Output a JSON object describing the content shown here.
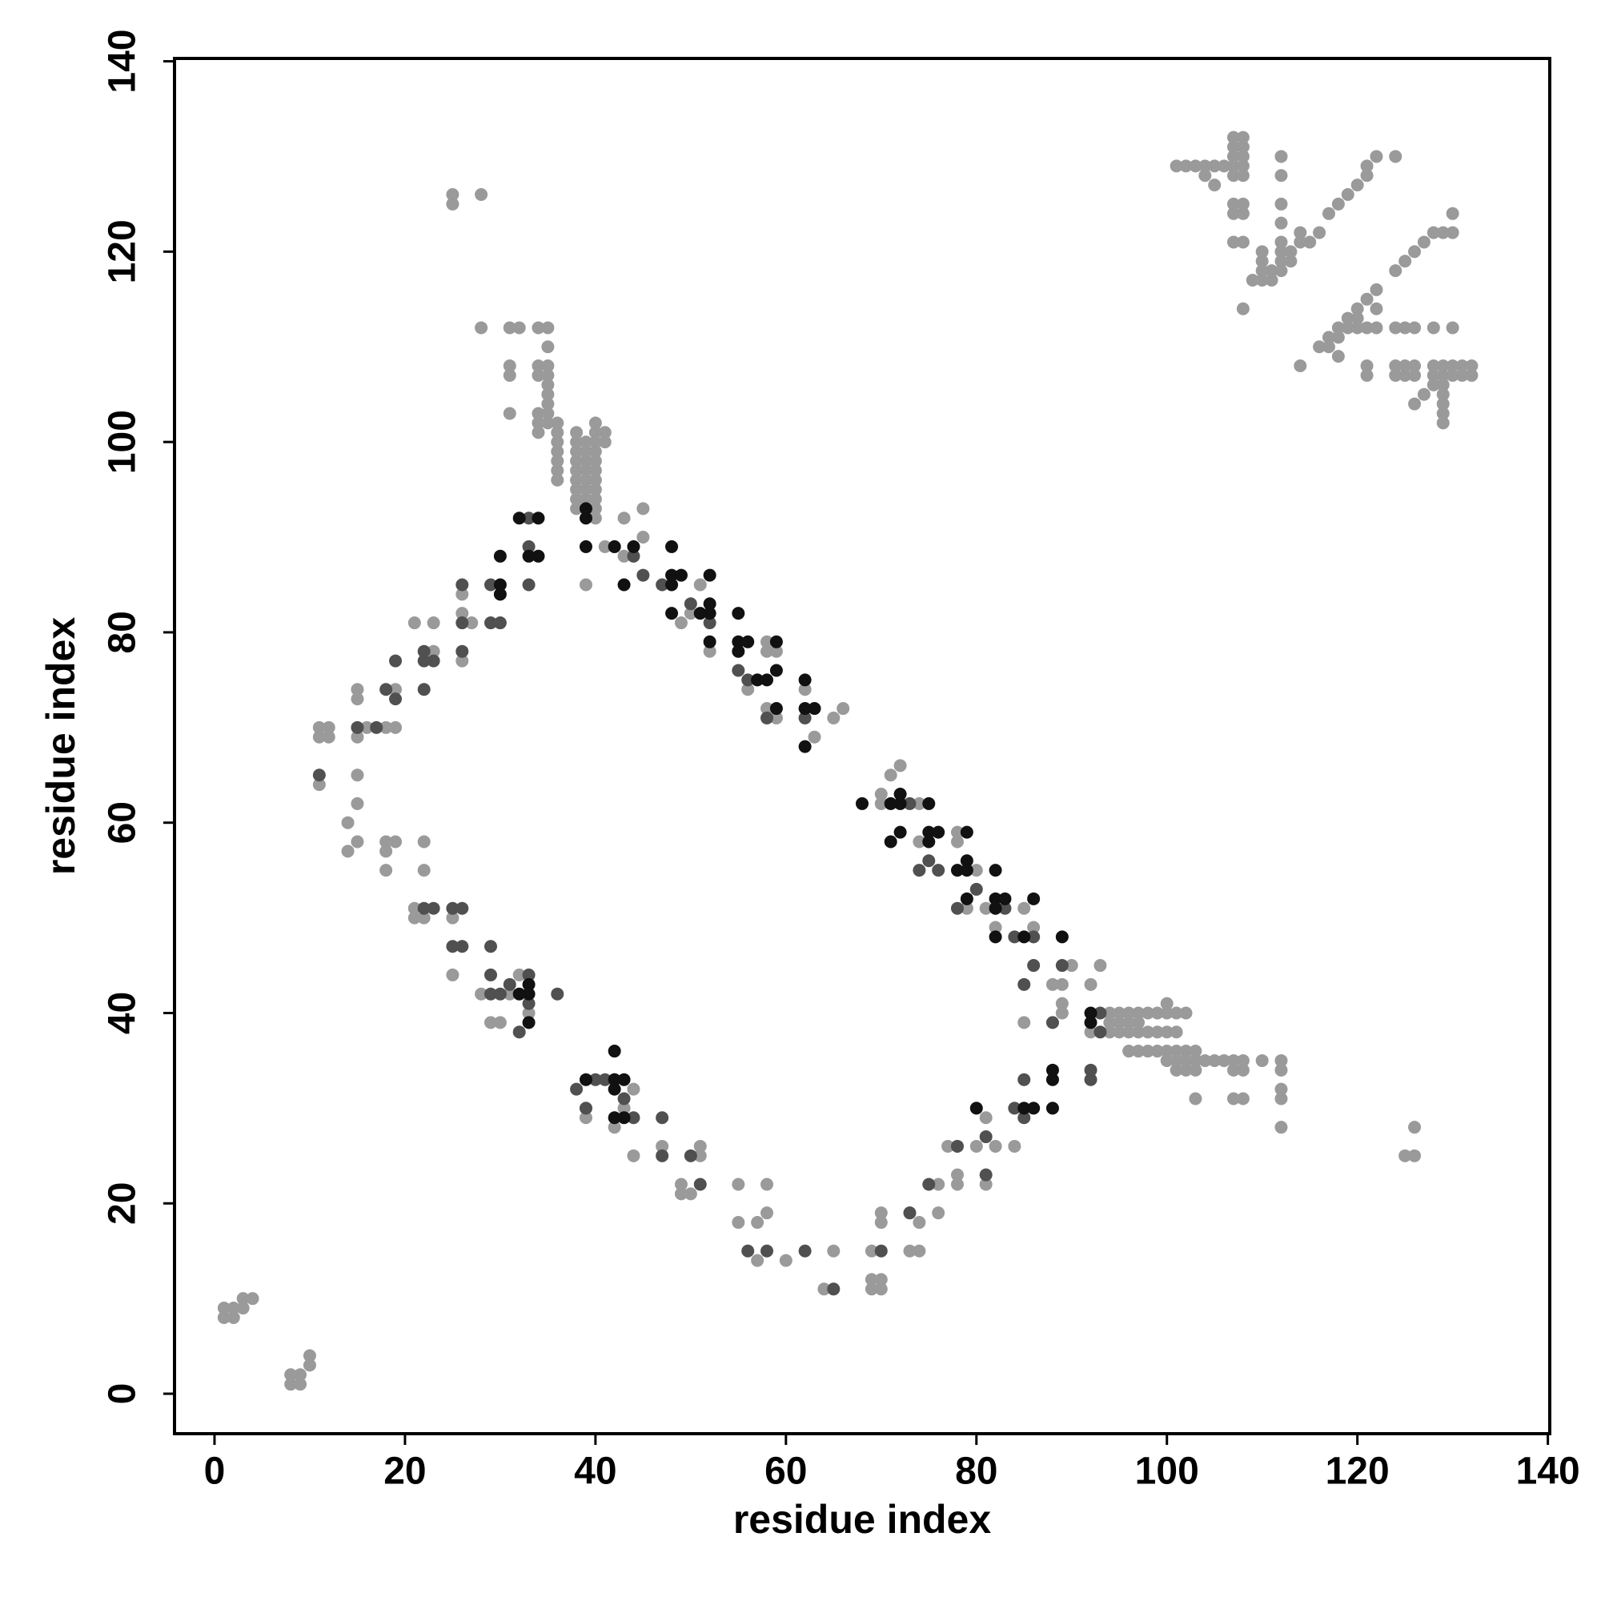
{
  "chart_data": {
    "type": "scatter",
    "x_label": "residue index",
    "y_label": "residue index",
    "xlim": [
      -4.2,
      140.2
    ],
    "ylim": [
      -4.2,
      140.3
    ],
    "xticks": [
      0,
      20,
      40,
      60,
      80,
      100,
      120,
      140
    ],
    "yticks": [
      0,
      20,
      40,
      60,
      80,
      100,
      120,
      140
    ],
    "grid": false,
    "series": [
      {
        "color": "#9a9a9a",
        "x": [
          1,
          1,
          2,
          2,
          3,
          4,
          3,
          8,
          8,
          9,
          9,
          10,
          10,
          25,
          25,
          28,
          28,
          31,
          32,
          34,
          35,
          31,
          31,
          31,
          34,
          34,
          35,
          35,
          35,
          35,
          35,
          35,
          35,
          34,
          34,
          34,
          36,
          36,
          36,
          36,
          36,
          36,
          36,
          35,
          38,
          38,
          38,
          38,
          38,
          38,
          38,
          38,
          38,
          39,
          39,
          39,
          39,
          39,
          39,
          39,
          40,
          40,
          40,
          40,
          40,
          40,
          40,
          40,
          40,
          41,
          41,
          40,
          40,
          43,
          45,
          45,
          41,
          42,
          43,
          39,
          101,
          102,
          103,
          104,
          105,
          106,
          105,
          104,
          107,
          107,
          107,
          107,
          107,
          108,
          108,
          108,
          108,
          108,
          107,
          107,
          108,
          108,
          107,
          108,
          108,
          112,
          112,
          112,
          112,
          112,
          112,
          112,
          112,
          110,
          110,
          110,
          110,
          109,
          111,
          111,
          113,
          113,
          114,
          114,
          115,
          116,
          117,
          118,
          119,
          120,
          121,
          121,
          122,
          124,
          114,
          116,
          117,
          117,
          118,
          118,
          118,
          119,
          119,
          120,
          120,
          120,
          121,
          121,
          122,
          122,
          122,
          124,
          125,
          126,
          124,
          124,
          125,
          125,
          126,
          126,
          121,
          121,
          124,
          125,
          126,
          127,
          128,
          129,
          130,
          130,
          128,
          130,
          126,
          127,
          128,
          129,
          129,
          129,
          129,
          129,
          129,
          129,
          130,
          130,
          131,
          131,
          132,
          132,
          128,
          128,
          11,
          12,
          11,
          12,
          15,
          15,
          15,
          16,
          18,
          19,
          19,
          15,
          15,
          14,
          14,
          15,
          18,
          19,
          18,
          18,
          11,
          21,
          21,
          22,
          22,
          22,
          21,
          23,
          23,
          26,
          26,
          26,
          27,
          25,
          25,
          28,
          29,
          30,
          32,
          33,
          31,
          39,
          39,
          42,
          43,
          44,
          44,
          47,
          49,
          49,
          50,
          51,
          51,
          55,
          55,
          57,
          57,
          58,
          58,
          60,
          64,
          65,
          69,
          69,
          69,
          70,
          70,
          70,
          70,
          73,
          74,
          74,
          73,
          76,
          76,
          77,
          78,
          78,
          80,
          81,
          81,
          82,
          84,
          85,
          88,
          89,
          90,
          89,
          89,
          93,
          92,
          92,
          94,
          95,
          96,
          97,
          98,
          99,
          100,
          101,
          102,
          100,
          94,
          95,
          96,
          97,
          94,
          95,
          96,
          97,
          98,
          99,
          100,
          101,
          96,
          97,
          98,
          99,
          100,
          101,
          102,
          103,
          100,
          101,
          102,
          103,
          104,
          105,
          106,
          107,
          108,
          101,
          102,
          103,
          107,
          108,
          103,
          107,
          108,
          110,
          112,
          112,
          112,
          112,
          112,
          125,
          126,
          126,
          49,
          50,
          51,
          52,
          56,
          57,
          58,
          58,
          58,
          59,
          59,
          62,
          63,
          65,
          66,
          71,
          72,
          70,
          70,
          74,
          74,
          78,
          78,
          79,
          80,
          81,
          82,
          85,
          86
        ],
        "y": [
          9,
          8,
          8,
          9,
          10,
          10,
          9,
          2,
          1,
          1,
          2,
          3,
          4,
          126,
          125,
          126,
          112,
          112,
          112,
          112,
          112,
          108,
          107,
          103,
          108,
          107,
          108,
          107,
          106,
          105,
          104,
          103,
          102,
          102,
          103,
          101,
          102,
          101,
          100,
          99,
          98,
          97,
          96,
          110,
          101,
          100,
          99,
          98,
          97,
          96,
          95,
          94,
          93,
          100,
          99,
          98,
          97,
          96,
          95,
          94,
          102,
          101,
          100,
          99,
          98,
          97,
          96,
          95,
          94,
          101,
          100,
          92,
          93,
          92,
          93,
          90,
          89,
          89,
          88,
          85,
          129,
          129,
          129,
          129,
          129,
          129,
          127,
          128,
          132,
          131,
          130,
          129,
          128,
          132,
          131,
          130,
          129,
          128,
          125,
          124,
          125,
          124,
          121,
          121,
          114,
          130,
          128,
          125,
          123,
          121,
          120,
          119,
          118,
          120,
          119,
          118,
          117,
          117,
          117,
          118,
          119,
          120,
          121,
          122,
          121,
          122,
          124,
          125,
          126,
          127,
          128,
          129,
          130,
          130,
          108,
          110,
          110,
          111,
          109,
          111,
          112,
          112,
          113,
          112,
          113,
          114,
          112,
          115,
          116,
          114,
          112,
          112,
          112,
          112,
          108,
          107,
          108,
          107,
          108,
          107,
          108,
          107,
          118,
          119,
          120,
          121,
          122,
          122,
          122,
          124,
          112,
          112,
          104,
          105,
          106,
          107,
          108,
          106,
          105,
          104,
          103,
          102,
          108,
          107,
          108,
          107,
          108,
          107,
          108,
          107,
          70,
          70,
          69,
          69,
          74,
          73,
          69,
          70,
          70,
          70,
          74,
          65,
          62,
          60,
          57,
          58,
          58,
          58,
          57,
          55,
          64,
          51,
          50,
          50,
          58,
          55,
          81,
          81,
          78,
          84,
          82,
          77,
          81,
          44,
          50,
          42,
          39,
          39,
          44,
          40,
          42,
          30,
          29,
          28,
          30,
          32,
          25,
          26,
          22,
          21,
          21,
          26,
          25,
          22,
          18,
          18,
          14,
          22,
          19,
          14,
          11,
          15,
          15,
          12,
          11,
          19,
          18,
          12,
          11,
          15,
          18,
          15,
          19,
          19,
          22,
          26,
          23,
          22,
          26,
          22,
          29,
          26,
          26,
          39,
          43,
          43,
          45,
          41,
          40,
          45,
          43,
          38,
          40,
          40,
          40,
          40,
          40,
          40,
          40,
          40,
          40,
          41,
          39,
          39,
          39,
          39,
          38,
          38,
          38,
          38,
          38,
          38,
          38,
          38,
          36,
          36,
          36,
          36,
          36,
          36,
          36,
          36,
          35,
          35,
          35,
          35,
          35,
          35,
          35,
          35,
          35,
          34,
          34,
          34,
          34,
          34,
          31,
          31,
          31,
          35,
          35,
          34,
          32,
          31,
          28,
          25,
          25,
          28,
          81,
          82,
          85,
          78,
          74,
          75,
          79,
          78,
          72,
          78,
          71,
          74,
          69,
          71,
          72,
          65,
          66,
          62,
          63,
          62,
          58,
          59,
          58,
          51,
          55,
          51,
          49,
          51,
          49
        ]
      },
      {
        "color": "#505050",
        "x": [
          11,
          15,
          17,
          18,
          19,
          19,
          22,
          22,
          22,
          23,
          26,
          26,
          26,
          29,
          29,
          30,
          22,
          23,
          25,
          25,
          26,
          26,
          29,
          29,
          29,
          30,
          31,
          32,
          33,
          33,
          36,
          33,
          33,
          33,
          38,
          39,
          40,
          41,
          42,
          43,
          44,
          47,
          47,
          50,
          51,
          56,
          58,
          62,
          65,
          70,
          73,
          75,
          78,
          81,
          81,
          84,
          85,
          85,
          86,
          85,
          88,
          89,
          92,
          92,
          93,
          93,
          44,
          45,
          47,
          50,
          52,
          55,
          56,
          58,
          62,
          73,
          75,
          74,
          76,
          78,
          80,
          83,
          86,
          84
        ],
        "y": [
          65,
          70,
          70,
          74,
          73,
          77,
          78,
          77,
          74,
          77,
          85,
          81,
          78,
          85,
          81,
          81,
          51,
          51,
          51,
          47,
          47,
          51,
          47,
          44,
          42,
          42,
          43,
          38,
          44,
          41,
          42,
          89,
          85,
          92,
          32,
          30,
          33,
          33,
          33,
          31,
          29,
          29,
          25,
          25,
          22,
          15,
          15,
          15,
          11,
          15,
          19,
          22,
          26,
          27,
          23,
          30,
          33,
          29,
          45,
          43,
          39,
          45,
          34,
          33,
          40,
          38,
          88,
          86,
          85,
          83,
          81,
          76,
          75,
          71,
          71,
          62,
          56,
          55,
          55,
          51,
          53,
          51,
          48,
          48
        ]
      },
      {
        "color": "#111111",
        "x": [
          30,
          30,
          30,
          32,
          33,
          34,
          34,
          39,
          39,
          39,
          42,
          43,
          44,
          48,
          48,
          48,
          49,
          52,
          52,
          52,
          51,
          52,
          48,
          55,
          55,
          55,
          56,
          57,
          58,
          59,
          59,
          59,
          62,
          62,
          62,
          63,
          68,
          71,
          72,
          72,
          72,
          71,
          75,
          75,
          75,
          76,
          78,
          79,
          79,
          79,
          79,
          82,
          82,
          83,
          82,
          82,
          85,
          86,
          89,
          85,
          86,
          88,
          88,
          88,
          80,
          33,
          33,
          32,
          33,
          39,
          42,
          42,
          43,
          42,
          42,
          43,
          92,
          92
        ],
        "y": [
          88,
          84,
          85,
          92,
          88,
          88,
          92,
          92,
          89,
          93,
          89,
          85,
          89,
          89,
          86,
          85,
          86,
          86,
          83,
          82,
          82,
          79,
          82,
          82,
          79,
          78,
          79,
          75,
          75,
          76,
          79,
          72,
          75,
          72,
          68,
          72,
          62,
          62,
          63,
          62,
          59,
          58,
          62,
          59,
          58,
          59,
          55,
          59,
          56,
          55,
          52,
          55,
          52,
          52,
          51,
          48,
          48,
          52,
          48,
          30,
          30,
          34,
          33,
          30,
          30,
          43,
          42,
          42,
          39,
          33,
          36,
          33,
          33,
          32,
          29,
          29,
          39,
          40
        ]
      }
    ]
  }
}
